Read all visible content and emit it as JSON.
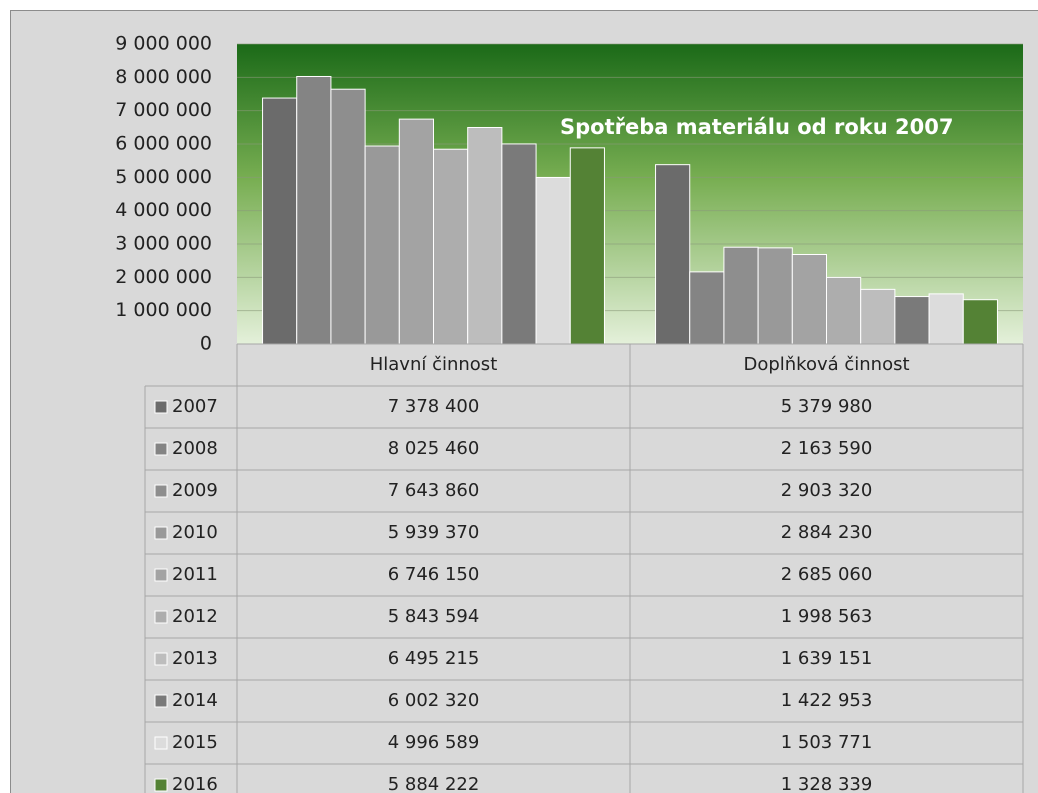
{
  "chart_data": {
    "type": "bar",
    "title": "Spotřeba materiálu od roku  2007",
    "categories": [
      "Hlavní činnost",
      "Doplňková činnost"
    ],
    "series": [
      {
        "name": "2007",
        "color": "#6b6b6b",
        "values": [
          7378400,
          5379980
        ],
        "value_labels": [
          "7 378 400",
          "5 379 980"
        ]
      },
      {
        "name": "2008",
        "color": "#848484",
        "values": [
          8025460,
          2163590
        ],
        "value_labels": [
          "8 025 460",
          "2 163 590"
        ]
      },
      {
        "name": "2009",
        "color": "#8e8e8e",
        "values": [
          7643860,
          2903320
        ],
        "value_labels": [
          "7 643 860",
          "2 903 320"
        ]
      },
      {
        "name": "2010",
        "color": "#999999",
        "values": [
          5939370,
          2884230
        ],
        "value_labels": [
          "5 939 370",
          "2 884 230"
        ]
      },
      {
        "name": "2011",
        "color": "#a3a3a3",
        "values": [
          6746150,
          2685060
        ],
        "value_labels": [
          "6 746 150",
          "2 685 060"
        ]
      },
      {
        "name": "2012",
        "color": "#adadad",
        "values": [
          5843594,
          1998563
        ],
        "value_labels": [
          "5 843 594",
          "1 998 563"
        ]
      },
      {
        "name": "2013",
        "color": "#bdbdbd",
        "values": [
          6495215,
          1639151
        ],
        "value_labels": [
          "6 495 215",
          "1 639 151"
        ]
      },
      {
        "name": "2014",
        "color": "#7a7a7a",
        "values": [
          6002320,
          1422953
        ],
        "value_labels": [
          "6 002 320",
          "1 422 953"
        ]
      },
      {
        "name": "2015",
        "color": "#dcdcdc",
        "values": [
          4996589,
          1503771
        ],
        "value_labels": [
          "4 996 589",
          "1 503 771"
        ]
      },
      {
        "name": "2016",
        "color": "#548235",
        "values": [
          5884222,
          1328339
        ],
        "value_labels": [
          "5 884 222",
          "1 328 339"
        ]
      }
    ],
    "ylim": [
      0,
      9000000
    ],
    "yticks": [
      {
        "value": 0,
        "label": "0"
      },
      {
        "value": 1000000,
        "label": "1 000 000"
      },
      {
        "value": 2000000,
        "label": "2 000 000"
      },
      {
        "value": 3000000,
        "label": "3 000 000"
      },
      {
        "value": 4000000,
        "label": "4 000 000"
      },
      {
        "value": 5000000,
        "label": "5 000 000"
      },
      {
        "value": 6000000,
        "label": "6 000 000"
      },
      {
        "value": 7000000,
        "label": "7 000 000"
      },
      {
        "value": 8000000,
        "label": "8 000 000"
      },
      {
        "value": 9000000,
        "label": "9 000 000"
      }
    ],
    "grid": true
  }
}
